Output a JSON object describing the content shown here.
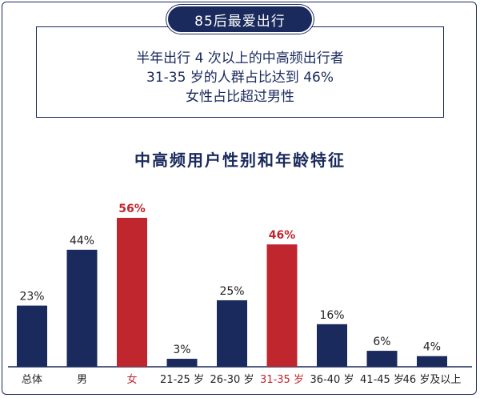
{
  "header": {
    "pill_title": "85后最爱出行"
  },
  "info": {
    "line1": "半年出行 4 次以上的中高频出行者",
    "line2": "31-35 岁的人群占比达到 46%",
    "line3": "女性占比超过男性"
  },
  "colors": {
    "navy": "#1a2a5c",
    "highlight": "#c0262e",
    "text": "#222222",
    "axis": "#1a2a5c"
  },
  "chart_data": {
    "type": "bar",
    "title": "中高频用户性别和年龄特征",
    "categories": [
      "总体",
      "男",
      "女",
      "21-25 岁",
      "26-30 岁",
      "31-35 岁",
      "36-40 岁",
      "41-45 岁",
      "46 岁及以上"
    ],
    "values": [
      23,
      44,
      56,
      3,
      25,
      46,
      16,
      6,
      4
    ],
    "value_labels": [
      "23%",
      "44%",
      "56%",
      "3%",
      "25%",
      "46%",
      "16%",
      "6%",
      "4%"
    ],
    "highlighted": [
      false,
      false,
      true,
      false,
      false,
      true,
      false,
      false,
      false
    ],
    "ylim": [
      0,
      56
    ],
    "xlabel": "",
    "ylabel": "",
    "grid": false
  }
}
